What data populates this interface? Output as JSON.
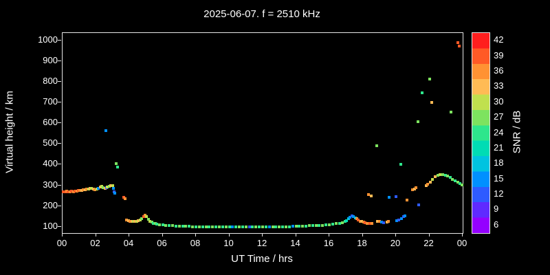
{
  "chart_data": {
    "type": "scatter",
    "title": "2025-06-07. f = 2510 kHz",
    "xlabel": "UT Time / hrs",
    "ylabel": "Virtual height / km",
    "xlim": [
      0,
      24
    ],
    "ylim": [
      70,
      1035
    ],
    "x_ticks": [
      {
        "value": 0,
        "label": "00"
      },
      {
        "value": 2,
        "label": "02"
      },
      {
        "value": 4,
        "label": "04"
      },
      {
        "value": 6,
        "label": "06"
      },
      {
        "value": 8,
        "label": "08"
      },
      {
        "value": 10,
        "label": "10"
      },
      {
        "value": 12,
        "label": "12"
      },
      {
        "value": 14,
        "label": "14"
      },
      {
        "value": 16,
        "label": "16"
      },
      {
        "value": 18,
        "label": "18"
      },
      {
        "value": 20,
        "label": "20"
      },
      {
        "value": 22,
        "label": "22"
      },
      {
        "value": 24,
        "label": "00"
      }
    ],
    "y_ticks": [
      100,
      200,
      300,
      400,
      500,
      600,
      700,
      800,
      900,
      1000
    ],
    "colorbar": {
      "label": "SNR / dB",
      "ticks": [
        6,
        9,
        12,
        15,
        18,
        21,
        24,
        27,
        30,
        33,
        36,
        39,
        42
      ],
      "colors": [
        "#9400ff",
        "#5f2aff",
        "#2e5bff",
        "#0090ff",
        "#00c3e0",
        "#00dcb4",
        "#2ee68c",
        "#7de35f",
        "#c0e04e",
        "#ffbb55",
        "#ff9233",
        "#ff5a26",
        "#ff1e1e"
      ]
    },
    "points": [
      [
        0.05,
        268,
        39
      ],
      [
        0.15,
        270,
        39
      ],
      [
        0.25,
        271,
        36
      ],
      [
        0.35,
        269,
        39
      ],
      [
        0.45,
        270,
        36
      ],
      [
        0.55,
        272,
        39
      ],
      [
        0.65,
        270,
        36
      ],
      [
        0.75,
        271,
        39
      ],
      [
        0.85,
        273,
        36
      ],
      [
        0.95,
        274,
        39
      ],
      [
        1.05,
        276,
        36
      ],
      [
        1.15,
        277,
        33
      ],
      [
        1.25,
        278,
        36
      ],
      [
        1.35,
        280,
        33
      ],
      [
        1.45,
        281,
        36
      ],
      [
        1.55,
        283,
        30
      ],
      [
        1.65,
        284,
        33
      ],
      [
        1.75,
        285,
        30
      ],
      [
        1.85,
        282,
        33
      ],
      [
        1.95,
        280,
        36
      ],
      [
        2.05,
        283,
        30
      ],
      [
        2.15,
        287,
        15
      ],
      [
        2.25,
        292,
        33
      ],
      [
        2.35,
        296,
        30
      ],
      [
        2.45,
        290,
        27
      ],
      [
        2.55,
        286,
        33
      ],
      [
        2.6,
        565,
        15
      ],
      [
        2.65,
        288,
        12
      ],
      [
        2.7,
        292,
        30
      ],
      [
        2.8,
        296,
        27
      ],
      [
        2.9,
        300,
        33
      ],
      [
        3.0,
        298,
        30
      ],
      [
        3.05,
        285,
        15
      ],
      [
        3.1,
        268,
        12
      ],
      [
        3.15,
        262,
        15
      ],
      [
        3.2,
        405,
        27
      ],
      [
        3.3,
        390,
        24
      ],
      [
        3.65,
        242,
        39
      ],
      [
        3.75,
        236,
        36
      ],
      [
        3.85,
        133,
        36
      ],
      [
        3.95,
        130,
        33
      ],
      [
        4.05,
        128,
        36
      ],
      [
        4.15,
        126,
        33
      ],
      [
        4.25,
        125,
        30
      ],
      [
        4.35,
        126,
        33
      ],
      [
        4.45,
        128,
        30
      ],
      [
        4.55,
        131,
        33
      ],
      [
        4.65,
        134,
        30
      ],
      [
        4.75,
        140,
        27
      ],
      [
        4.85,
        150,
        39
      ],
      [
        4.95,
        157,
        36
      ],
      [
        5.05,
        148,
        30
      ],
      [
        5.15,
        136,
        27
      ],
      [
        5.25,
        128,
        30
      ],
      [
        5.35,
        122,
        27
      ],
      [
        5.45,
        118,
        24
      ],
      [
        5.55,
        115,
        27
      ],
      [
        5.65,
        113,
        24
      ],
      [
        5.8,
        111,
        27
      ],
      [
        6.0,
        109,
        24
      ],
      [
        6.2,
        107,
        27
      ],
      [
        6.4,
        106,
        24
      ],
      [
        6.6,
        105,
        27
      ],
      [
        6.8,
        104,
        24
      ],
      [
        7.0,
        103,
        27
      ],
      [
        7.2,
        103,
        24
      ],
      [
        7.4,
        102,
        27
      ],
      [
        7.6,
        102,
        24
      ],
      [
        7.8,
        101,
        27
      ],
      [
        8.0,
        101,
        24
      ],
      [
        8.2,
        101,
        27
      ],
      [
        8.4,
        100,
        24
      ],
      [
        8.6,
        100,
        27
      ],
      [
        8.8,
        100,
        24
      ],
      [
        9.0,
        100,
        27
      ],
      [
        9.2,
        100,
        24
      ],
      [
        9.4,
        100,
        27
      ],
      [
        9.6,
        100,
        24
      ],
      [
        9.8,
        100,
        27
      ],
      [
        10.0,
        100,
        24
      ],
      [
        10.2,
        100,
        15
      ],
      [
        10.4,
        100,
        24
      ],
      [
        10.6,
        100,
        27
      ],
      [
        10.8,
        100,
        24
      ],
      [
        11.0,
        100,
        27
      ],
      [
        11.2,
        100,
        12
      ],
      [
        11.4,
        100,
        24
      ],
      [
        11.6,
        100,
        27
      ],
      [
        11.8,
        100,
        24
      ],
      [
        12.0,
        100,
        27
      ],
      [
        12.2,
        100,
        24
      ],
      [
        12.4,
        100,
        15
      ],
      [
        12.6,
        100,
        27
      ],
      [
        12.8,
        100,
        24
      ],
      [
        13.0,
        100,
        27
      ],
      [
        13.2,
        100,
        24
      ],
      [
        13.4,
        101,
        27
      ],
      [
        13.6,
        101,
        24
      ],
      [
        13.8,
        102,
        15
      ],
      [
        14.0,
        102,
        27
      ],
      [
        14.2,
        103,
        24
      ],
      [
        14.4,
        103,
        27
      ],
      [
        14.6,
        104,
        24
      ],
      [
        14.8,
        105,
        27
      ],
      [
        15.0,
        105,
        24
      ],
      [
        15.2,
        106,
        27
      ],
      [
        15.4,
        107,
        24
      ],
      [
        15.6,
        108,
        27
      ],
      [
        15.8,
        110,
        24
      ],
      [
        16.0,
        111,
        27
      ],
      [
        16.2,
        113,
        24
      ],
      [
        16.4,
        115,
        27
      ],
      [
        16.6,
        118,
        24
      ],
      [
        16.8,
        121,
        27
      ],
      [
        16.95,
        125,
        24
      ],
      [
        17.05,
        130,
        21
      ],
      [
        17.15,
        138,
        18
      ],
      [
        17.25,
        147,
        15
      ],
      [
        17.35,
        153,
        12
      ],
      [
        17.45,
        150,
        15
      ],
      [
        17.55,
        143,
        18
      ],
      [
        17.65,
        138,
        36
      ],
      [
        17.75,
        132,
        39
      ],
      [
        17.85,
        128,
        36
      ],
      [
        17.95,
        125,
        33
      ],
      [
        18.05,
        122,
        36
      ],
      [
        18.15,
        120,
        39
      ],
      [
        18.25,
        118,
        36
      ],
      [
        18.45,
        117,
        39
      ],
      [
        18.55,
        116,
        36
      ],
      [
        18.9,
        128,
        33
      ],
      [
        19.0,
        125,
        36
      ],
      [
        19.15,
        122,
        15
      ],
      [
        19.25,
        120,
        12
      ],
      [
        19.45,
        123,
        33
      ],
      [
        19.55,
        127,
        36
      ],
      [
        20.05,
        130,
        15
      ],
      [
        20.15,
        134,
        12
      ],
      [
        20.35,
        140,
        15
      ],
      [
        20.45,
        148,
        12
      ],
      [
        20.55,
        152,
        15
      ],
      [
        18.35,
        256,
        36
      ],
      [
        18.5,
        250,
        33
      ],
      [
        18.85,
        490,
        27
      ],
      [
        19.6,
        243,
        15
      ],
      [
        20.0,
        247,
        12
      ],
      [
        20.3,
        400,
        24
      ],
      [
        20.65,
        230,
        36
      ],
      [
        21.35,
        205,
        12
      ],
      [
        21.0,
        278,
        36
      ],
      [
        21.1,
        283,
        33
      ],
      [
        21.2,
        288,
        36
      ],
      [
        21.3,
        608,
        27
      ],
      [
        21.55,
        748,
        24
      ],
      [
        22.0,
        812,
        27
      ],
      [
        22.15,
        700,
        33
      ],
      [
        23.3,
        655,
        27
      ],
      [
        23.7,
        988,
        39
      ],
      [
        23.78,
        972,
        39
      ],
      [
        21.8,
        298,
        33
      ],
      [
        21.9,
        305,
        36
      ],
      [
        22.05,
        315,
        33
      ],
      [
        22.2,
        330,
        30
      ],
      [
        22.35,
        342,
        33
      ],
      [
        22.5,
        350,
        27
      ],
      [
        22.65,
        353,
        30
      ],
      [
        22.8,
        352,
        27
      ],
      [
        22.95,
        348,
        24
      ],
      [
        23.1,
        344,
        27
      ],
      [
        23.25,
        338,
        24
      ],
      [
        23.4,
        330,
        27
      ],
      [
        23.55,
        322,
        24
      ],
      [
        23.7,
        315,
        27
      ],
      [
        23.85,
        308,
        24
      ],
      [
        23.95,
        302,
        27
      ]
    ]
  }
}
